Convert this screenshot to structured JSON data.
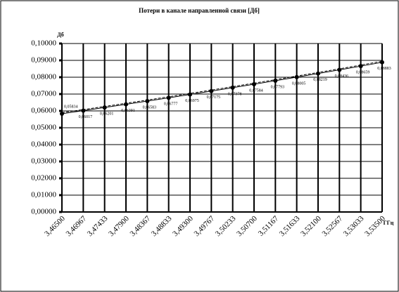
{
  "chart_data": {
    "type": "line",
    "title": "Потери в канале направленной связи [Дб]",
    "y_label": "Дб",
    "x_label": "ГГц",
    "categories": [
      "3,46500",
      "3,46967",
      "3,47433",
      "3,47900",
      "3,48367",
      "3,48833",
      "3,49300",
      "3,49767",
      "3,50233",
      "3,50700",
      "3,51167",
      "3,51633",
      "3,52100",
      "3,52567",
      "3,53033",
      "3,53500"
    ],
    "values": [
      0.05834,
      0.06017,
      0.06201,
      0.06391,
      0.06583,
      0.06777,
      0.06975,
      0.07175,
      0.07378,
      0.07584,
      0.07793,
      0.08005,
      0.08219,
      0.08436,
      0.08659,
      0.08883
    ],
    "value_labels": [
      "0,05834",
      "0,06017",
      "0,06201",
      "0,06391",
      "0,06583",
      "0,06777",
      "0,06975",
      "0,07175",
      "0,07378",
      "0,07584",
      "0,07793",
      "0,08005",
      "0,08219",
      "0,08436",
      "0,08659",
      "0,08883"
    ],
    "color": "#000000",
    "ylim": [
      0,
      0.1
    ],
    "yticks": [
      {
        "value": 0,
        "label": "0,00000"
      },
      {
        "value": 0.01,
        "label": "0,01000"
      },
      {
        "value": 0.02,
        "label": "0,02000"
      },
      {
        "value": 0.03,
        "label": "0,03000"
      },
      {
        "value": 0.04,
        "label": "0,04000"
      },
      {
        "value": 0.05,
        "label": "0,05000"
      },
      {
        "value": 0.06,
        "label": "0,06000"
      },
      {
        "value": 0.07,
        "label": "0,07000"
      },
      {
        "value": 0.08,
        "label": "0,08000"
      },
      {
        "value": 0.09,
        "label": "0,09000"
      },
      {
        "value": 0.1,
        "label": "0,10000"
      }
    ],
    "grid": true
  }
}
